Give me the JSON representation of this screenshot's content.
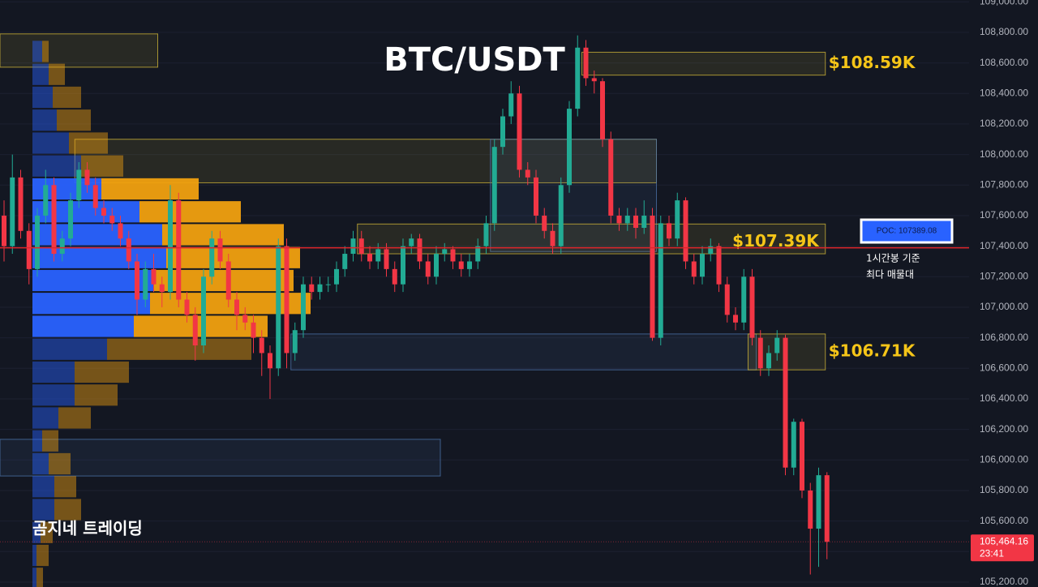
{
  "chart_data": {
    "type": "candlestick",
    "title": "BTC/USDT",
    "watermark": "곰지네 트레이딩",
    "up_color": "#22ab94",
    "down_color": "#f23645",
    "grid": true,
    "ylim": [
      105168,
      109012
    ],
    "yticks": [
      {
        "value": 105200,
        "label": "105,200.00"
      },
      {
        "value": 105400,
        "label": "105,400.00"
      },
      {
        "value": 105600,
        "label": "105,600.00"
      },
      {
        "value": 105800,
        "label": "105,800.00"
      },
      {
        "value": 106000,
        "label": "106,000.00"
      },
      {
        "value": 106200,
        "label": "106,200.00"
      },
      {
        "value": 106400,
        "label": "106,400.00"
      },
      {
        "value": 106600,
        "label": "106,600.00"
      },
      {
        "value": 106800,
        "label": "106,800.00"
      },
      {
        "value": 107000,
        "label": "107,000.00"
      },
      {
        "value": 107200,
        "label": "107,200.00"
      },
      {
        "value": 107400,
        "label": "107,400.00"
      },
      {
        "value": 107600,
        "label": "107,600.00"
      },
      {
        "value": 107800,
        "label": "107,800.00"
      },
      {
        "value": 108000,
        "label": "108,000.00"
      },
      {
        "value": 108200,
        "label": "108,200.00"
      },
      {
        "value": 108400,
        "label": "108,400.00"
      },
      {
        "value": 108600,
        "label": "108,600.00"
      },
      {
        "value": 108800,
        "label": "108,800.00"
      },
      {
        "value": 109000,
        "label": "109,000.00"
      }
    ],
    "candles": [
      [
        107600,
        107700,
        107300,
        107400
      ],
      [
        107400,
        108000,
        107350,
        107850
      ],
      [
        107850,
        107900,
        107450,
        107500
      ],
      [
        107500,
        107550,
        107150,
        107250
      ],
      [
        107250,
        107650,
        107200,
        107600
      ],
      [
        107600,
        107900,
        107550,
        107800
      ],
      [
        107800,
        107850,
        107300,
        107350
      ],
      [
        107350,
        107500,
        107300,
        107450
      ],
      [
        107450,
        107750,
        107400,
        107700
      ],
      [
        107700,
        107950,
        107650,
        107900
      ],
      [
        107900,
        107950,
        107750,
        107800
      ],
      [
        107800,
        107850,
        107600,
        107650
      ],
      [
        107650,
        107700,
        107550,
        107600
      ],
      [
        107600,
        107650,
        107500,
        107550
      ],
      [
        107550,
        107600,
        107400,
        107450
      ],
      [
        107450,
        107500,
        107250,
        107300
      ],
      [
        107300,
        107350,
        106950,
        107050
      ],
      [
        107050,
        107300,
        107000,
        107250
      ],
      [
        107250,
        107350,
        107100,
        107150
      ],
      [
        107150,
        107200,
        107000,
        107100
      ],
      [
        107100,
        107800,
        107050,
        107700
      ],
      [
        107700,
        107750,
        107000,
        107050
      ],
      [
        107050,
        107100,
        106900,
        106950
      ],
      [
        106950,
        107000,
        106650,
        106750
      ],
      [
        106750,
        107250,
        106700,
        107200
      ],
      [
        107200,
        107500,
        107150,
        107450
      ],
      [
        107450,
        107500,
        107250,
        107300
      ],
      [
        107300,
        107350,
        107000,
        107050
      ],
      [
        107050,
        107100,
        106850,
        106950
      ],
      [
        106950,
        107000,
        106850,
        106900
      ],
      [
        106900,
        106950,
        106700,
        106800
      ],
      [
        106800,
        106850,
        106550,
        106700
      ],
      [
        106700,
        106750,
        106400,
        106600
      ],
      [
        106600,
        107450,
        106550,
        107400
      ],
      [
        107400,
        107450,
        106600,
        106700
      ],
      [
        106700,
        106900,
        106650,
        106850
      ],
      [
        106850,
        107200,
        106800,
        107150
      ],
      [
        107150,
        107200,
        107050,
        107100
      ],
      [
        107100,
        107200,
        107050,
        107150
      ],
      [
        107150,
        107200,
        107100,
        107150
      ],
      [
        107150,
        107300,
        107100,
        107250
      ],
      [
        107250,
        107400,
        107200,
        107350
      ],
      [
        107350,
        107500,
        107300,
        107450
      ],
      [
        107450,
        107500,
        107300,
        107350
      ],
      [
        107350,
        107400,
        107250,
        107300
      ],
      [
        107300,
        107420,
        107250,
        107380
      ],
      [
        107380,
        107420,
        107200,
        107250
      ],
      [
        107250,
        107300,
        107100,
        107150
      ],
      [
        107150,
        107450,
        107100,
        107400
      ],
      [
        107400,
        107480,
        107350,
        107450
      ],
      [
        107450,
        107480,
        107250,
        107300
      ],
      [
        107300,
        107350,
        107150,
        107200
      ],
      [
        107200,
        107400,
        107150,
        107350
      ],
      [
        107350,
        107420,
        107300,
        107380
      ],
      [
        107380,
        107400,
        107250,
        107300
      ],
      [
        107300,
        107350,
        107200,
        107250
      ],
      [
        107250,
        107350,
        107200,
        107300
      ],
      [
        107300,
        107450,
        107250,
        107400
      ],
      [
        107400,
        107600,
        107350,
        107550
      ],
      [
        107550,
        108100,
        107500,
        108050
      ],
      [
        108050,
        108300,
        108000,
        108250
      ],
      [
        108250,
        108480,
        108200,
        108400
      ],
      [
        108400,
        108450,
        107850,
        107900
      ],
      [
        107900,
        107950,
        107800,
        107850
      ],
      [
        107850,
        107900,
        107550,
        107600
      ],
      [
        107600,
        107650,
        107450,
        107500
      ],
      [
        107500,
        107550,
        107350,
        107400
      ],
      [
        107400,
        107850,
        107350,
        107800
      ],
      [
        107800,
        108350,
        107750,
        108300
      ],
      [
        108300,
        108780,
        108250,
        108700
      ],
      [
        108700,
        108750,
        108450,
        108500
      ],
      [
        108500,
        108550,
        108400,
        108480
      ],
      [
        108480,
        108500,
        108050,
        108100
      ],
      [
        108100,
        108150,
        107550,
        107600
      ],
      [
        107600,
        107650,
        107500,
        107550
      ],
      [
        107550,
        107650,
        107500,
        107600
      ],
      [
        107600,
        107650,
        107450,
        107520
      ],
      [
        107520,
        107700,
        107480,
        107600
      ],
      [
        107600,
        107650,
        106780,
        106800
      ],
      [
        106800,
        107600,
        106750,
        107550
      ],
      [
        107550,
        107600,
        107400,
        107450
      ],
      [
        107450,
        107750,
        107400,
        107700
      ],
      [
        107700,
        107720,
        107250,
        107300
      ],
      [
        107300,
        107350,
        107150,
        107200
      ],
      [
        107200,
        107400,
        107150,
        107350
      ],
      [
        107350,
        107450,
        107300,
        107400
      ],
      [
        107400,
        107420,
        107100,
        107150
      ],
      [
        107150,
        107200,
        106900,
        106950
      ],
      [
        106950,
        107000,
        106850,
        106900
      ],
      [
        106900,
        107250,
        106850,
        107200
      ],
      [
        107200,
        107250,
        106750,
        106800
      ],
      [
        106800,
        106850,
        106550,
        106600
      ],
      [
        106600,
        106750,
        106550,
        106700
      ],
      [
        106700,
        106850,
        106650,
        106800
      ],
      [
        106800,
        106820,
        105900,
        105950
      ],
      [
        105950,
        106270,
        105900,
        106250
      ],
      [
        106250,
        106270,
        105750,
        105800
      ],
      [
        105800,
        105850,
        105250,
        105550
      ],
      [
        105550,
        105950,
        105300,
        105900
      ],
      [
        105900,
        105920,
        105350,
        105464.16
      ]
    ],
    "volume_profile": {
      "bins": [
        105150,
        105300,
        105450,
        105600,
        105750,
        105900,
        106050,
        106200,
        106350,
        106500,
        106650,
        106800,
        106950,
        107100,
        107250,
        107400,
        107550,
        107700,
        107850,
        108000,
        108150,
        108300,
        108450,
        108600,
        108750
      ],
      "buy": [
        5,
        5,
        10,
        27,
        27,
        20,
        12,
        32,
        52,
        52,
        92,
        125,
        145,
        150,
        165,
        160,
        132,
        85,
        60,
        45,
        30,
        25,
        20,
        12
      ],
      "sell": [
        8,
        15,
        15,
        33,
        27,
        27,
        20,
        40,
        53,
        67,
        178,
        165,
        198,
        172,
        165,
        150,
        125,
        120,
        52,
        48,
        42,
        35,
        20,
        8
      ],
      "buy_color": "#2962ff",
      "sell_color": "#f0a010",
      "value_area": [
        106800,
        107850
      ]
    },
    "zones": [
      {
        "top": 108790,
        "bottom": 108572,
        "from": 0,
        "to": 18,
        "color": "#c9b037"
      },
      {
        "top": 108100,
        "bottom": 107815,
        "from": 9,
        "to": 78,
        "color": "#c9b037"
      },
      {
        "top": 108100,
        "bottom": 107365,
        "from": 59,
        "to": 78,
        "color": "#4a6fa5"
      },
      {
        "top": 107545,
        "bottom": 107350,
        "from": 43,
        "to": 99,
        "color": "#c9b037",
        "label": "$107.39K"
      },
      {
        "top": 108670,
        "bottom": 108520,
        "from": 70,
        "to": 99,
        "color": "#c9b037",
        "label": "$108.59K"
      },
      {
        "top": 106825,
        "bottom": 106590,
        "from": 35,
        "to": 90,
        "color": "#4a6fa5"
      },
      {
        "top": 106825,
        "bottom": 106590,
        "from": 90,
        "to": 99,
        "color": "#c9b037",
        "label": "$106.71K"
      },
      {
        "top": 106135,
        "bottom": 105895,
        "from": 0,
        "to": 52,
        "color": "#4a6fa5"
      }
    ],
    "poc": {
      "value": 107389.08,
      "label": "POC: 107389.08",
      "color": "#e0262b"
    },
    "poc_note": [
      "1시간봉 기준",
      "최다 매물대"
    ],
    "last_price": {
      "value": 105464.16,
      "label": "105,464.16",
      "countdown": "23:41"
    }
  }
}
